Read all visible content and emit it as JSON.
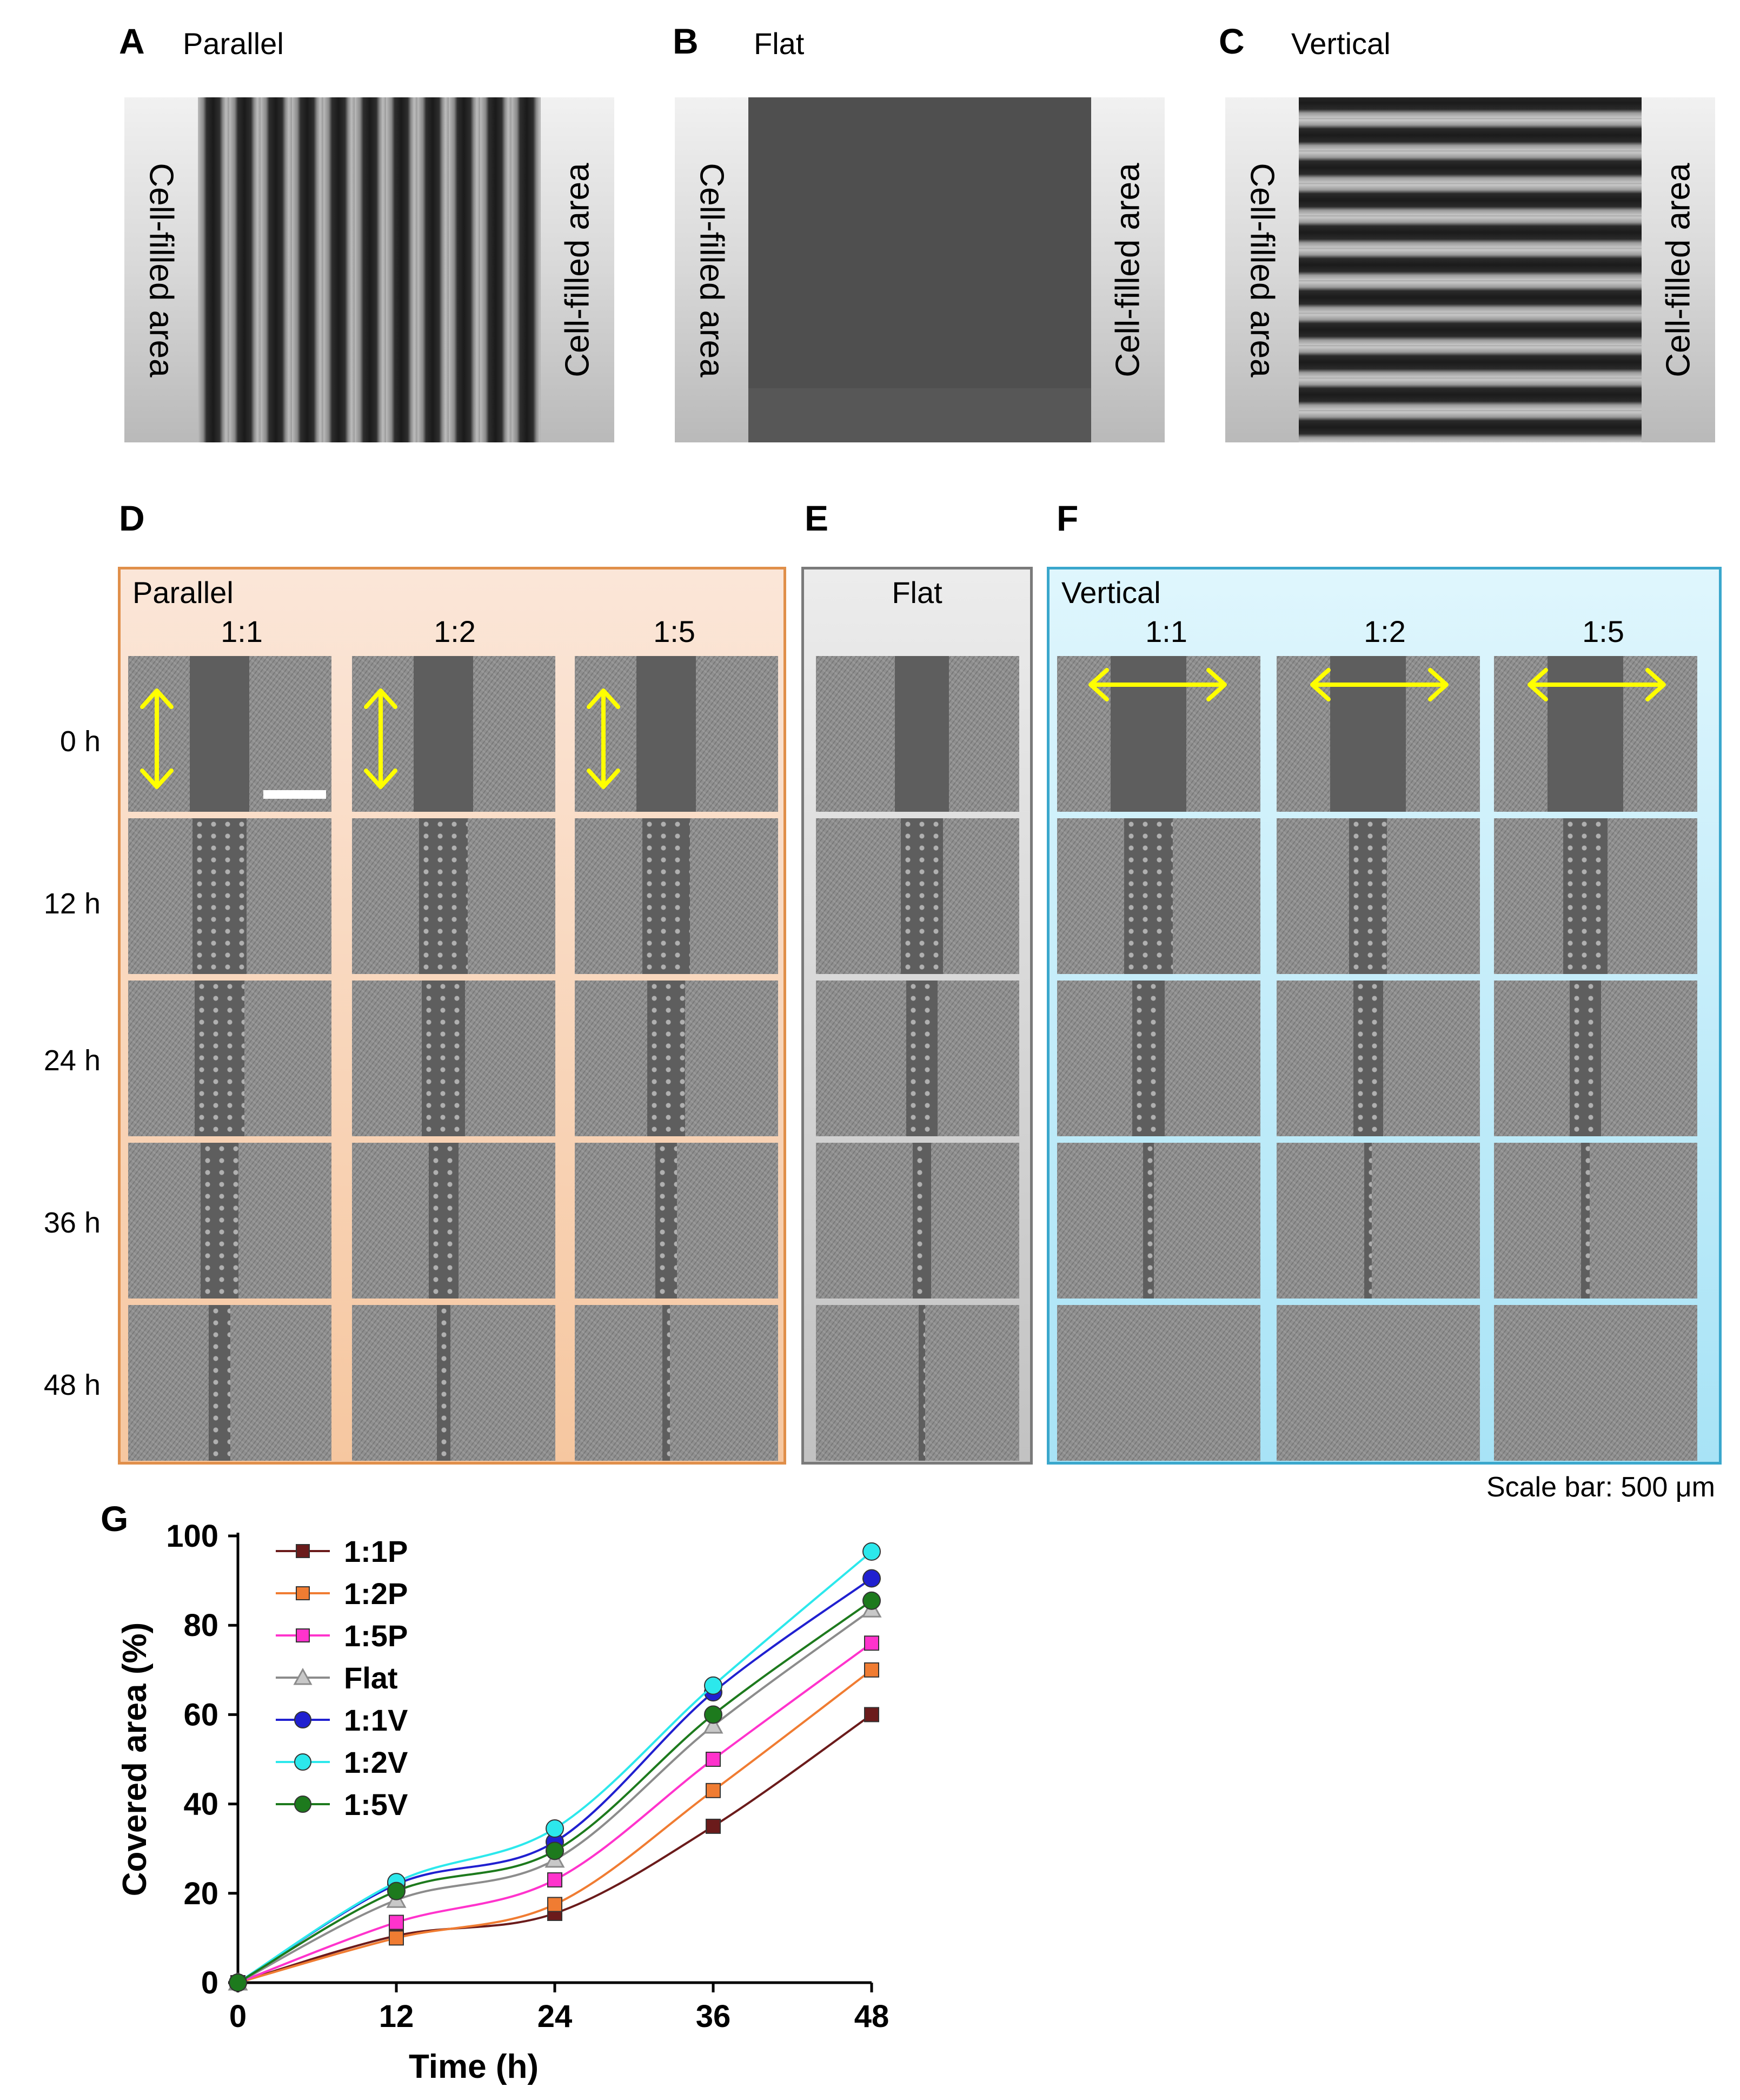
{
  "panels_top": [
    {
      "letter": "A",
      "title": "Parallel",
      "left_label": "Cell-filled area",
      "right_label": "Cell-filled area"
    },
    {
      "letter": "B",
      "title": "Flat",
      "left_label": "Cell-filled area",
      "right_label": "Cell-filled area"
    },
    {
      "letter": "C",
      "title": "Vertical",
      "left_label": "Cell-filled area",
      "right_label": "Cell-filled area"
    }
  ],
  "panel_letters": {
    "D": "D",
    "E": "E",
    "F": "F",
    "G": "G"
  },
  "frames": {
    "parallel": {
      "label": "Parallel",
      "columns": [
        "1:1",
        "1:2",
        "1:5"
      ]
    },
    "flat": {
      "label": "Flat"
    },
    "vertical": {
      "label": "Vertical",
      "columns": [
        "1:1",
        "1:2",
        "1:5"
      ]
    }
  },
  "time_points": [
    "0 h",
    "12 h",
    "24 h",
    "36 h",
    "48 h"
  ],
  "scale_bar_text": "Scale bar: 500 μm",
  "colors": {
    "parallel_frame": "#e08f4a",
    "flat_frame": "#7a7a7a",
    "vertical_frame": "#3aa7cc",
    "arrow": "#ffff00"
  },
  "chart_data": {
    "type": "line",
    "x": [
      0,
      12,
      24,
      36,
      48
    ],
    "xlabel": "Time (h)",
    "ylabel": "Covered area (%)",
    "xlim": [
      0,
      48
    ],
    "ylim": [
      0,
      100
    ],
    "xticks": [
      0,
      12,
      24,
      36,
      48
    ],
    "yticks": [
      0,
      20,
      40,
      60,
      80,
      100
    ],
    "legend": "top-left",
    "grid": false,
    "series": [
      {
        "name": "1:1P",
        "values": [
          0,
          10.5,
          15.5,
          35,
          60
        ],
        "color": "#6b1b1b",
        "marker": "square"
      },
      {
        "name": "1:2P",
        "values": [
          0,
          10,
          17.5,
          43,
          70
        ],
        "color": "#f07c32",
        "marker": "square"
      },
      {
        "name": "1:5P",
        "values": [
          0,
          13.5,
          23,
          50,
          76
        ],
        "color": "#ff33cc",
        "marker": "square"
      },
      {
        "name": "Flat",
        "values": [
          0,
          18.5,
          27.5,
          57.5,
          83.5
        ],
        "color": "#8c8c8c",
        "marker": "triangle"
      },
      {
        "name": "1:1V",
        "values": [
          0,
          22,
          31.5,
          65,
          90.5
        ],
        "color": "#2020d0",
        "marker": "circle"
      },
      {
        "name": "1:2V",
        "values": [
          0,
          22.5,
          34.5,
          66.5,
          96.5
        ],
        "color": "#2ce8ec",
        "marker": "circle"
      },
      {
        "name": "1:5V",
        "values": [
          0,
          20.5,
          29.5,
          60,
          85.5
        ],
        "color": "#1d7a1d",
        "marker": "circle"
      }
    ]
  }
}
